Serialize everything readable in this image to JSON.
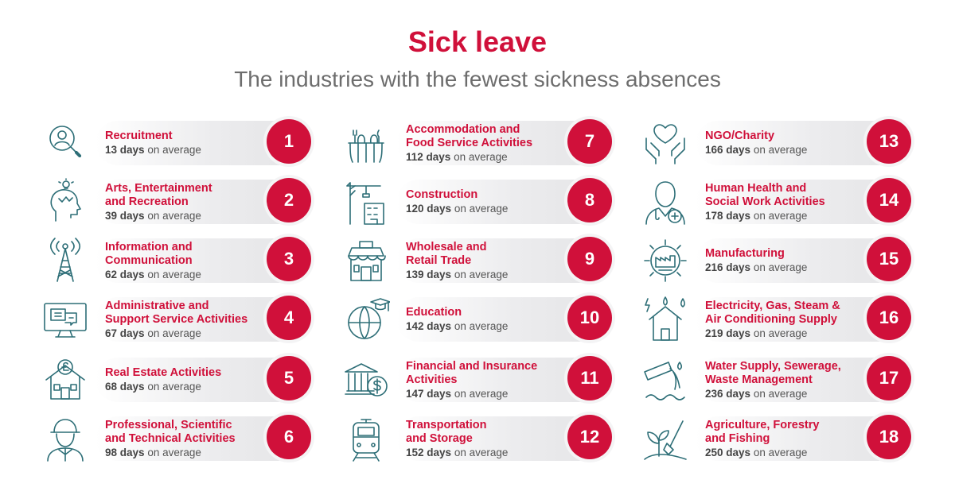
{
  "header": {
    "title": "Sick leave",
    "subtitle": "The industries with the fewest sickness absences"
  },
  "days_suffix": "on average",
  "accent_color": "#d0103a",
  "icon_color": "#2d6e77",
  "industries": [
    {
      "rank": "1",
      "name": "Recruitment",
      "days": "13 days",
      "icon": "magnifier-person-icon"
    },
    {
      "rank": "2",
      "name": "Arts, Entertainment\nand Recreation",
      "days": "39 days",
      "icon": "creative-head-icon"
    },
    {
      "rank": "3",
      "name": "Information and\nCommunication",
      "days": "62 days",
      "icon": "radio-tower-icon"
    },
    {
      "rank": "4",
      "name": "Administrative and\nSupport Service Activities",
      "days": "67 days",
      "icon": "monitor-chat-icon"
    },
    {
      "rank": "5",
      "name": "Real Estate Activities",
      "days": "68 days",
      "icon": "house-pound-icon"
    },
    {
      "rank": "6",
      "name": "Professional, Scientific\nand Technical Activities",
      "days": "98 days",
      "icon": "engineer-icon"
    },
    {
      "rank": "7",
      "name": "Accommodation and\nFood Service Activities",
      "days": "112 days",
      "icon": "dining-table-icon"
    },
    {
      "rank": "8",
      "name": "Construction",
      "days": "120 days",
      "icon": "crane-building-icon"
    },
    {
      "rank": "9",
      "name": "Wholesale and\nRetail Trade",
      "days": "139 days",
      "icon": "shop-icon"
    },
    {
      "rank": "10",
      "name": "Education",
      "days": "142 days",
      "icon": "globe-graduation-icon"
    },
    {
      "rank": "11",
      "name": "Financial and Insurance\nActivities",
      "days": "147 days",
      "icon": "bank-dollar-icon"
    },
    {
      "rank": "12",
      "name": "Transportation\nand Storage",
      "days": "152 days",
      "icon": "train-icon"
    },
    {
      "rank": "13",
      "name": "NGO/Charity",
      "days": "166 days",
      "icon": "hands-heart-icon"
    },
    {
      "rank": "14",
      "name": "Human Health and\nSocial Work Activities",
      "days": "178 days",
      "icon": "doctor-icon"
    },
    {
      "rank": "15",
      "name": "Manufacturing",
      "days": "216 days",
      "icon": "gear-factory-icon"
    },
    {
      "rank": "16",
      "name": "Electricity, Gas, Steam &\nAir Conditioning Supply",
      "days": "219 days",
      "icon": "house-energy-icon"
    },
    {
      "rank": "17",
      "name": "Water Supply, Sewerage,\nWaste Management",
      "days": "236 days",
      "icon": "water-pipe-icon"
    },
    {
      "rank": "18",
      "name": "Agriculture, Forestry\nand Fishing",
      "days": "250 days",
      "icon": "plant-shovel-icon"
    }
  ]
}
